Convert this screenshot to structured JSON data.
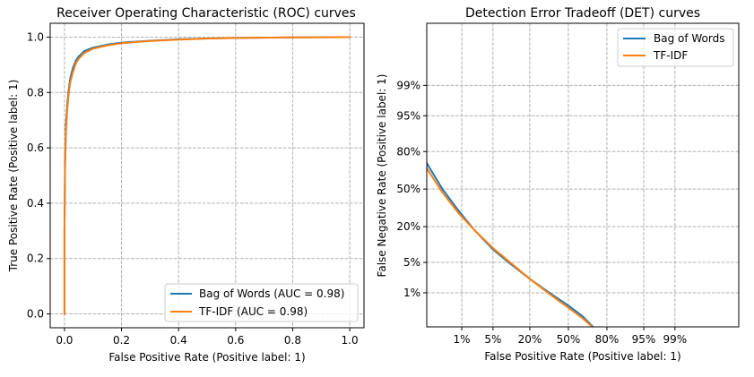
{
  "colors": {
    "bow": "#1f77b4",
    "tfidf": "#ff7f0e"
  },
  "chart_data": [
    {
      "type": "line",
      "title": "Receiver Operating Characteristic (ROC) curves",
      "xlabel": "False Positive Rate (Positive label: 1)",
      "ylabel": "True Positive Rate (Positive label: 1)",
      "xlim": [
        -0.05,
        1.05
      ],
      "ylim": [
        -0.05,
        1.05
      ],
      "xticks": [
        0.0,
        0.2,
        0.4,
        0.6,
        0.8,
        1.0
      ],
      "xtick_labels": [
        "0.0",
        "0.2",
        "0.4",
        "0.6",
        "0.8",
        "1.0"
      ],
      "yticks": [
        0.0,
        0.2,
        0.4,
        0.6,
        0.8,
        1.0
      ],
      "ytick_labels": [
        "0.0",
        "0.2",
        "0.4",
        "0.6",
        "0.8",
        "1.0"
      ],
      "grid": true,
      "legend_loc": "lower-right",
      "series": [
        {
          "name": "Bag of Words (AUC = 0.98)",
          "color": "#1f77b4",
          "x": [
            0,
            0,
            0.002,
            0.005,
            0.01,
            0.015,
            0.02,
            0.03,
            0.04,
            0.05,
            0.07,
            0.1,
            0.15,
            0.2,
            0.3,
            0.4,
            0.5,
            0.6,
            0.8,
            1.0
          ],
          "y": [
            0,
            0.3,
            0.55,
            0.68,
            0.76,
            0.81,
            0.85,
            0.89,
            0.915,
            0.93,
            0.95,
            0.962,
            0.973,
            0.98,
            0.987,
            0.992,
            0.995,
            0.997,
            0.999,
            1.0
          ]
        },
        {
          "name": "TF-IDF (AUC = 0.98)",
          "color": "#ff7f0e",
          "x": [
            0,
            0,
            0.002,
            0.005,
            0.01,
            0.015,
            0.02,
            0.03,
            0.04,
            0.05,
            0.07,
            0.1,
            0.15,
            0.2,
            0.3,
            0.4,
            0.5,
            0.6,
            0.8,
            1.0
          ],
          "y": [
            0,
            0.28,
            0.52,
            0.65,
            0.74,
            0.795,
            0.835,
            0.875,
            0.905,
            0.922,
            0.943,
            0.958,
            0.97,
            0.978,
            0.986,
            0.991,
            0.995,
            0.997,
            0.999,
            1.0
          ]
        }
      ]
    },
    {
      "type": "line",
      "title": "Detection Error Tradeoff (DET) curves",
      "xlabel": "False Positive Rate (Positive label: 1)",
      "ylabel": "False Negative Rate (Positive label: 1)",
      "x_scale": "probit",
      "y_scale": "probit",
      "xlim": [
        0.001,
        0.9999
      ],
      "ylim": [
        0.001,
        0.9999
      ],
      "xticks": [
        0.01,
        0.05,
        0.2,
        0.5,
        0.8,
        0.95,
        0.99
      ],
      "xtick_labels": [
        "1%",
        "5%",
        "20%",
        "50%",
        "80%",
        "95%",
        "99%"
      ],
      "yticks": [
        0.01,
        0.05,
        0.2,
        0.5,
        0.8,
        0.95,
        0.99
      ],
      "ytick_labels": [
        "1%",
        "5%",
        "20%",
        "50%",
        "80%",
        "95%",
        "99%"
      ],
      "grid": true,
      "legend_loc": "upper-right",
      "series": [
        {
          "name": "Bag of Words",
          "color": "#1f77b4",
          "x": [
            0.001,
            0.003,
            0.008,
            0.02,
            0.05,
            0.1,
            0.2,
            0.35,
            0.5,
            0.62,
            0.7
          ],
          "y": [
            0.72,
            0.5,
            0.32,
            0.18,
            0.088,
            0.048,
            0.022,
            0.0095,
            0.0045,
            0.0022,
            0.00105
          ]
        },
        {
          "name": "TF-IDF",
          "color": "#ff7f0e",
          "x": [
            0.001,
            0.003,
            0.008,
            0.02,
            0.05,
            0.1,
            0.2,
            0.35,
            0.5,
            0.62,
            0.7
          ],
          "y": [
            0.68,
            0.47,
            0.3,
            0.18,
            0.093,
            0.051,
            0.022,
            0.0088,
            0.0039,
            0.0019,
            0.001
          ]
        }
      ]
    }
  ]
}
